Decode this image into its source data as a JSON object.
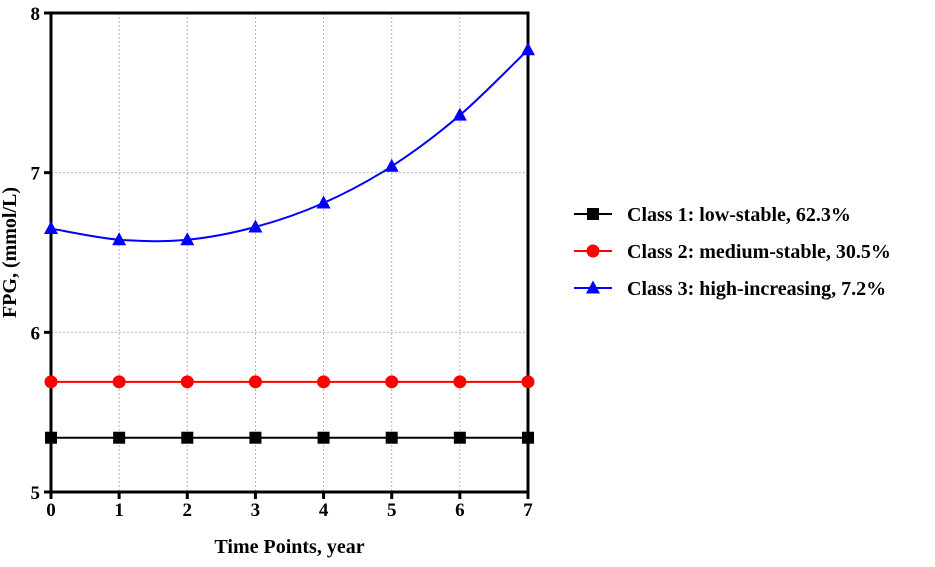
{
  "chart_data": {
    "type": "line",
    "xlabel": "Time Points, year",
    "ylabel": "FPG, (mmol/L)",
    "xlim": [
      0,
      7
    ],
    "ylim": [
      5,
      8
    ],
    "xticks": [
      "0",
      "1",
      "2",
      "3",
      "4",
      "5",
      "6",
      "7"
    ],
    "yticks": [
      "5",
      "6",
      "7",
      "8"
    ],
    "grid": "dotted",
    "legend_position": "right",
    "x": [
      0,
      1,
      2,
      3,
      4,
      5,
      6,
      7
    ],
    "series": [
      {
        "name": "Class 1: low-stable, 62.3%",
        "color": "#000000",
        "marker": "square",
        "values": [
          5.34,
          5.34,
          5.34,
          5.34,
          5.34,
          5.34,
          5.34,
          5.34
        ]
      },
      {
        "name": "Class 2: medium-stable, 30.5%",
        "color": "#ff0000",
        "marker": "circle",
        "values": [
          5.69,
          5.69,
          5.69,
          5.69,
          5.69,
          5.69,
          5.69,
          5.69
        ]
      },
      {
        "name": "Class 3: high-increasing, 7.2%",
        "color": "#0000ff",
        "marker": "triangle",
        "values": [
          6.65,
          6.58,
          6.58,
          6.66,
          6.81,
          7.04,
          7.36,
          7.77
        ]
      }
    ]
  }
}
